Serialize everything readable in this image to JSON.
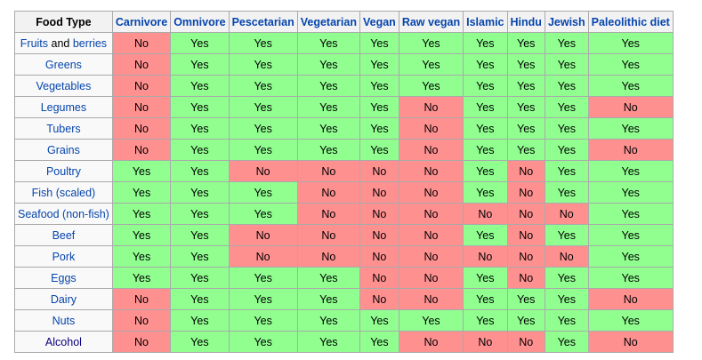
{
  "colors": {
    "yes": "#90ff90",
    "no": "#ff9090",
    "link": "#0645ad",
    "header_bg": "#f2f2f2"
  },
  "table": {
    "headers": [
      "Food Type",
      "Carnivore",
      "Omnivore",
      "Pescetarian",
      "Vegetarian",
      "Vegan",
      "Raw vegan",
      "Islamic",
      "Hindu",
      "Jewish",
      "Paleolithic diet"
    ],
    "rows": [
      {
        "food": "Fruits and berries",
        "food_parts": [
          "Fruits",
          " and ",
          "berries"
        ],
        "values": [
          "No",
          "Yes",
          "Yes",
          "Yes",
          "Yes",
          "Yes",
          "Yes",
          "Yes",
          "Yes",
          "Yes"
        ]
      },
      {
        "food": "Greens",
        "values": [
          "No",
          "Yes",
          "Yes",
          "Yes",
          "Yes",
          "Yes",
          "Yes",
          "Yes",
          "Yes",
          "Yes"
        ]
      },
      {
        "food": "Vegetables",
        "values": [
          "No",
          "Yes",
          "Yes",
          "Yes",
          "Yes",
          "Yes",
          "Yes",
          "Yes",
          "Yes",
          "Yes"
        ]
      },
      {
        "food": "Legumes",
        "values": [
          "No",
          "Yes",
          "Yes",
          "Yes",
          "Yes",
          "No",
          "Yes",
          "Yes",
          "Yes",
          "No"
        ]
      },
      {
        "food": "Tubers",
        "values": [
          "No",
          "Yes",
          "Yes",
          "Yes",
          "Yes",
          "No",
          "Yes",
          "Yes",
          "Yes",
          "Yes"
        ]
      },
      {
        "food": "Grains",
        "values": [
          "No",
          "Yes",
          "Yes",
          "Yes",
          "Yes",
          "No",
          "Yes",
          "Yes",
          "Yes",
          "No"
        ]
      },
      {
        "food": "Poultry",
        "values": [
          "Yes",
          "Yes",
          "No",
          "No",
          "No",
          "No",
          "Yes",
          "No",
          "Yes",
          "Yes"
        ]
      },
      {
        "food": "Fish (scaled)",
        "values": [
          "Yes",
          "Yes",
          "Yes",
          "No",
          "No",
          "No",
          "Yes",
          "No",
          "Yes",
          "Yes"
        ]
      },
      {
        "food": "Seafood (non-fish)",
        "values": [
          "Yes",
          "Yes",
          "Yes",
          "No",
          "No",
          "No",
          "No",
          "No",
          "No",
          "Yes"
        ]
      },
      {
        "food": "Beef",
        "values": [
          "Yes",
          "Yes",
          "No",
          "No",
          "No",
          "No",
          "Yes",
          "No",
          "Yes",
          "Yes"
        ]
      },
      {
        "food": "Pork",
        "values": [
          "Yes",
          "Yes",
          "No",
          "No",
          "No",
          "No",
          "No",
          "No",
          "No",
          "Yes"
        ]
      },
      {
        "food": "Eggs",
        "values": [
          "Yes",
          "Yes",
          "Yes",
          "Yes",
          "No",
          "No",
          "Yes",
          "No",
          "Yes",
          "Yes"
        ]
      },
      {
        "food": "Dairy",
        "values": [
          "No",
          "Yes",
          "Yes",
          "Yes",
          "No",
          "No",
          "Yes",
          "Yes",
          "Yes",
          "No"
        ]
      },
      {
        "food": "Nuts",
        "values": [
          "No",
          "Yes",
          "Yes",
          "Yes",
          "Yes",
          "Yes",
          "Yes",
          "Yes",
          "Yes",
          "Yes"
        ]
      },
      {
        "food": "Alcohol",
        "values": [
          "No",
          "Yes",
          "Yes",
          "Yes",
          "Yes",
          "No",
          "No",
          "No",
          "Yes",
          "No"
        ]
      }
    ]
  }
}
